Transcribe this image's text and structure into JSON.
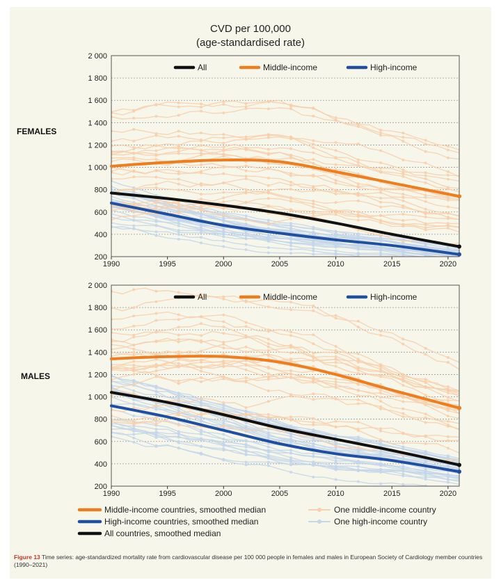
{
  "title_line1": "CVD per 100,000",
  "title_line2": "(age-standardised rate)",
  "caption_label": "Figure 13",
  "caption_text": "Time series: age-standardized mortality rate from cardiovascular disease per 100 000 people in females and males in European Society of Cardiology member countries (1990–2021)",
  "colors": {
    "all": "#111111",
    "middle": "#ee7d1e",
    "high": "#1f4fa0",
    "middle_light": "#f8cfac",
    "high_light": "#c4d6ea"
  },
  "legend_bottom": [
    {
      "key": "middle",
      "label": "Middle-income countries, smoothed median"
    },
    {
      "key": "high",
      "label": "High-income countries, smoothed median"
    },
    {
      "key": "all",
      "label": "All countries, smoothed median"
    },
    {
      "key": "middle_light",
      "label": "One middle-income country"
    },
    {
      "key": "high_light",
      "label": "One high-income country"
    }
  ],
  "chart_data": [
    {
      "type": "line",
      "panel_label": "FEMALES",
      "x": [
        1990,
        1995,
        2000,
        2005,
        2010,
        2015,
        2020
      ],
      "xlim": [
        1990,
        2021
      ],
      "ylim": [
        200,
        2000
      ],
      "yticks": [
        200,
        400,
        600,
        800,
        1000,
        1200,
        1400,
        1600,
        1800,
        2000
      ],
      "ytick_labels": [
        "200",
        "400",
        "600",
        "800",
        "1 000",
        "1 200",
        "1 400",
        "1 600",
        "1 800",
        "2 000"
      ],
      "grid": true,
      "legend_position": "top",
      "series": [
        {
          "name": "All",
          "key": "all",
          "x": [
            1990,
            1995,
            2000,
            2005,
            2010,
            2015,
            2021
          ],
          "values": [
            770,
            720,
            660,
            590,
            500,
            400,
            290
          ]
        },
        {
          "name": "Middle-income",
          "key": "middle",
          "x": [
            1990,
            1995,
            2000,
            2005,
            2010,
            2015,
            2021
          ],
          "values": [
            1010,
            1045,
            1065,
            1050,
            960,
            860,
            740
          ]
        },
        {
          "name": "High-income",
          "key": "high",
          "x": [
            1990,
            1995,
            2000,
            2005,
            2010,
            2015,
            2021
          ],
          "values": [
            680,
            580,
            480,
            410,
            350,
            300,
            220
          ]
        }
      ]
    },
    {
      "type": "line",
      "panel_label": "MALES",
      "x": [
        1990,
        1995,
        2000,
        2005,
        2010,
        2015,
        2020
      ],
      "xlim": [
        1990,
        2021
      ],
      "ylim": [
        200,
        2000
      ],
      "yticks": [
        200,
        400,
        600,
        800,
        1000,
        1200,
        1400,
        1600,
        1800,
        2000
      ],
      "ytick_labels": [
        "200",
        "400",
        "600",
        "800",
        "1 000",
        "1 200",
        "1 400",
        "1 600",
        "1 800",
        "2 000"
      ],
      "grid": true,
      "legend_position": "top",
      "series": [
        {
          "name": "All",
          "key": "all",
          "x": [
            1990,
            1995,
            2000,
            2005,
            2010,
            2015,
            2021
          ],
          "values": [
            1040,
            950,
            840,
            720,
            620,
            520,
            390
          ]
        },
        {
          "name": "Middle-income",
          "key": "middle",
          "x": [
            1990,
            1995,
            2000,
            2005,
            2010,
            2015,
            2021
          ],
          "values": [
            1340,
            1360,
            1360,
            1310,
            1200,
            1060,
            900
          ]
        },
        {
          "name": "High-income",
          "key": "high",
          "x": [
            1990,
            1995,
            2000,
            2005,
            2010,
            2015,
            2021
          ],
          "values": [
            920,
            820,
            700,
            580,
            490,
            430,
            330
          ]
        }
      ]
    }
  ]
}
